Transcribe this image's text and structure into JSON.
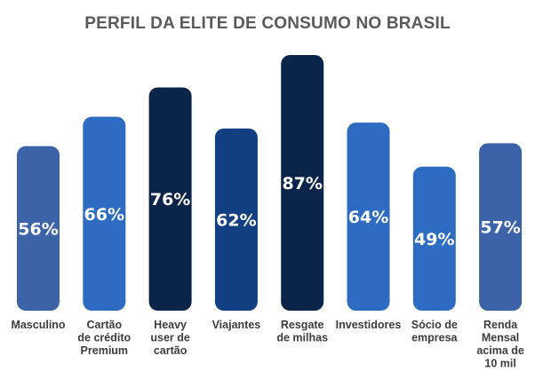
{
  "chart_data": {
    "type": "bar",
    "title": "PERFIL DA ELITE DE CONSUMO NO BRASIL",
    "categories": [
      [
        "Masculino"
      ],
      [
        "Cartão",
        "de crédito",
        "Premium"
      ],
      [
        "Heavy",
        "user de",
        "cartão"
      ],
      [
        "Viajantes"
      ],
      [
        "Resgate",
        "de milhas"
      ],
      [
        "Investidores"
      ],
      [
        "Sócio de",
        "empresa"
      ],
      [
        "Renda",
        "Mensal",
        "acima de",
        "10 mil"
      ]
    ],
    "values": [
      56,
      66,
      76,
      62,
      87,
      64,
      49,
      57
    ],
    "value_labels": [
      "56%",
      "66%",
      "76%",
      "62%",
      "87%",
      "64%",
      "49%",
      "57%"
    ],
    "colors": [
      "#3C63A8",
      "#2E6CC4",
      "#0B254A",
      "#123F82",
      "#0B254A",
      "#2E6CC4",
      "#2E6CC4",
      "#3C63A8"
    ],
    "ylim": [
      0,
      100
    ],
    "grid": false
  }
}
